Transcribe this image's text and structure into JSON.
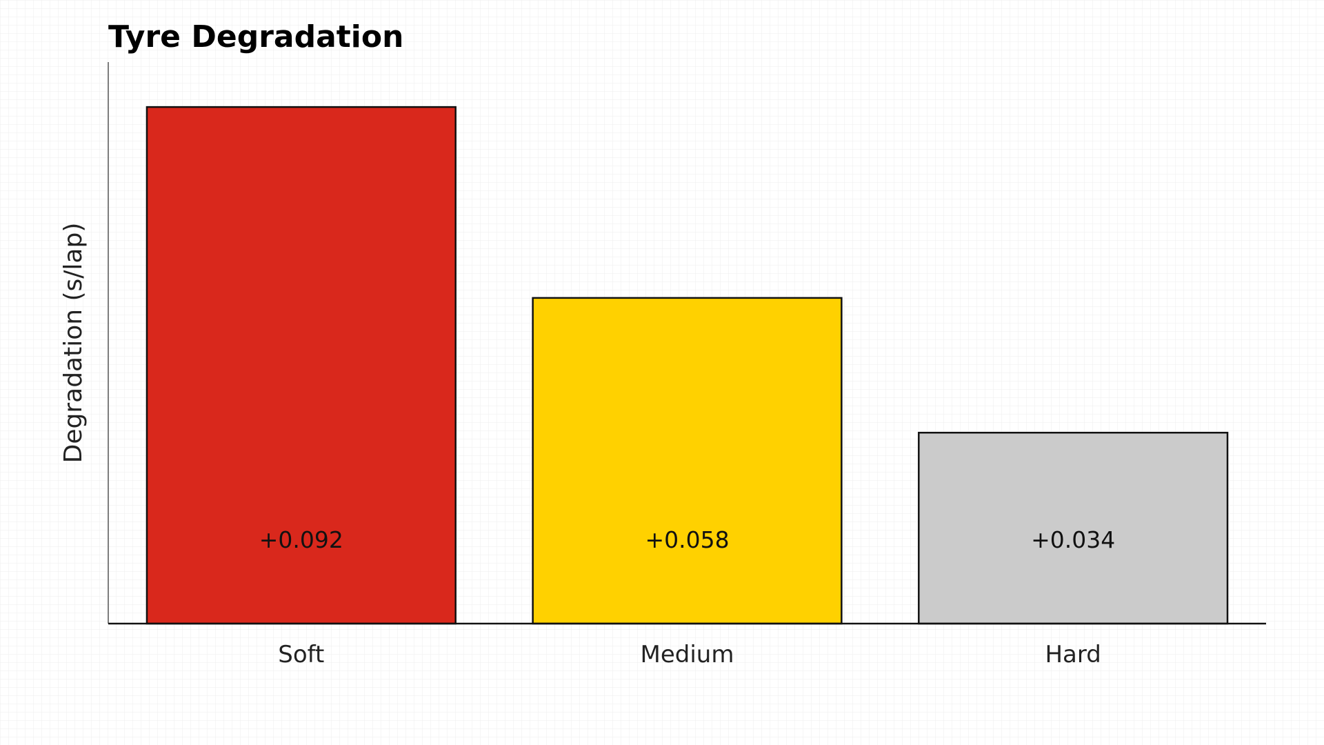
{
  "chart_data": {
    "type": "bar",
    "title": "Tyre Degradation",
    "xlabel": "",
    "ylabel": "Degradation (s/lap)",
    "categories": [
      "Soft",
      "Medium",
      "Hard"
    ],
    "values": [
      0.092,
      0.058,
      0.034
    ],
    "data_labels": [
      "+0.092",
      "+0.058",
      "+0.034"
    ],
    "colors": [
      "#d9281c",
      "#ffd100",
      "#cbcbcb"
    ],
    "ylim": [
      0,
      0.1
    ],
    "grid": false,
    "legend": "none",
    "background_pattern": "faint-grid"
  }
}
